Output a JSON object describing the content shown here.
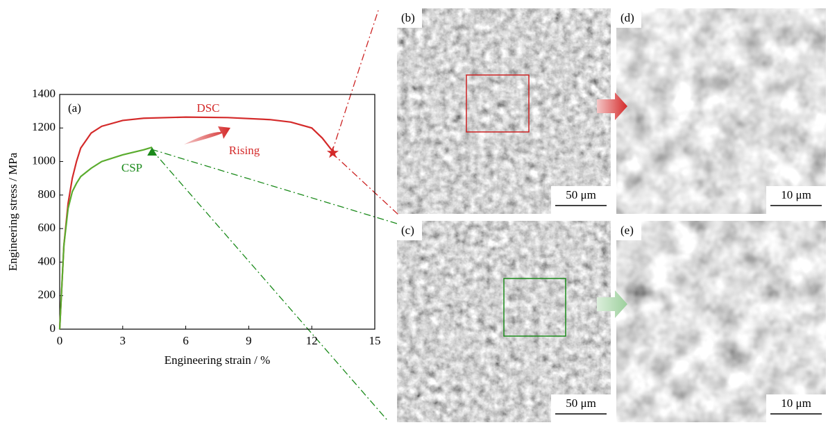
{
  "chart_data": {
    "type": "line",
    "panel_label": "(a)",
    "xlabel": "Engineering strain / %",
    "ylabel": "Engineering stress / MPa",
    "xlim": [
      0,
      15
    ],
    "xticks": [
      0,
      3,
      6,
      9,
      12,
      15
    ],
    "ylim": [
      0,
      1400
    ],
    "yticks": [
      0,
      200,
      400,
      600,
      800,
      1000,
      1200,
      1400
    ],
    "series": [
      {
        "name": "DSC",
        "color": "#d42a2a",
        "marker": "star",
        "x": [
          0,
          0.2,
          0.4,
          0.6,
          0.8,
          1,
          1.5,
          2,
          3,
          4,
          6,
          8,
          10,
          11,
          12,
          12.5,
          13
        ],
        "values": [
          0,
          500,
          750,
          900,
          1000,
          1080,
          1170,
          1210,
          1245,
          1258,
          1265,
          1262,
          1250,
          1235,
          1200,
          1140,
          1060
        ]
      },
      {
        "name": "CSP",
        "color": "#5aac2e",
        "marker": "triangle",
        "x": [
          0,
          0.2,
          0.4,
          0.6,
          0.8,
          1,
          1.5,
          2,
          3,
          4,
          4.4
        ],
        "values": [
          0,
          500,
          720,
          820,
          870,
          910,
          960,
          1000,
          1040,
          1070,
          1085
        ]
      }
    ],
    "annotation": "Rising"
  },
  "panels": [
    {
      "label": "(b)",
      "scale": "50 μm"
    },
    {
      "label": "(d)",
      "scale": "10 μm"
    },
    {
      "label": "(c)",
      "scale": "50 μm"
    },
    {
      "label": "(e)",
      "scale": "10 μm"
    }
  ]
}
